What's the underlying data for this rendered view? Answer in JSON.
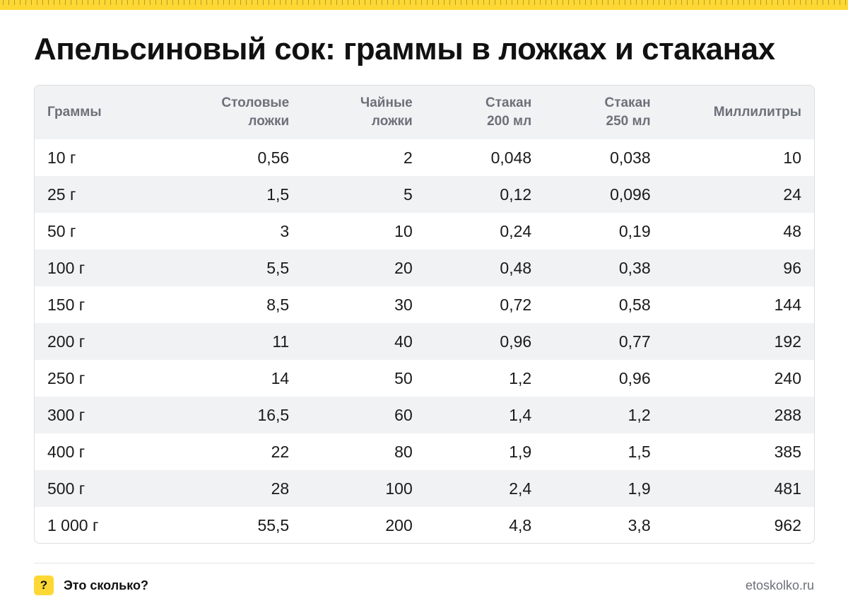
{
  "title": "Апельсиновый сок: граммы в ложках и стаканах",
  "table": {
    "headers": [
      [
        "Граммы",
        ""
      ],
      [
        "Столовые",
        "ложки"
      ],
      [
        "Чайные",
        "ложки"
      ],
      [
        "Стакан",
        "200 мл"
      ],
      [
        "Стакан",
        "250 мл"
      ],
      [
        "Миллилитры",
        ""
      ]
    ],
    "rows": [
      [
        "10 г",
        "0,56",
        "2",
        "0,048",
        "0,038",
        "10"
      ],
      [
        "25 г",
        "1,5",
        "5",
        "0,12",
        "0,096",
        "24"
      ],
      [
        "50 г",
        "3",
        "10",
        "0,24",
        "0,19",
        "48"
      ],
      [
        "100 г",
        "5,5",
        "20",
        "0,48",
        "0,38",
        "96"
      ],
      [
        "150 г",
        "8,5",
        "30",
        "0,72",
        "0,58",
        "144"
      ],
      [
        "200 г",
        "11",
        "40",
        "0,96",
        "0,77",
        "192"
      ],
      [
        "250 г",
        "14",
        "50",
        "1,2",
        "0,96",
        "240"
      ],
      [
        "300 г",
        "16,5",
        "60",
        "1,4",
        "1,2",
        "288"
      ],
      [
        "400 г",
        "22",
        "80",
        "1,9",
        "1,5",
        "385"
      ],
      [
        "500 г",
        "28",
        "100",
        "2,4",
        "1,9",
        "481"
      ],
      [
        "1 000 г",
        "55,5",
        "200",
        "4,8",
        "3,8",
        "962"
      ]
    ]
  },
  "footer": {
    "icon_glyph": "?",
    "icon_name": "question-mark-icon",
    "brand": "Это сколько?",
    "site": "etoskolko.ru"
  },
  "colors": {
    "accent": "#fdd835",
    "stripe": "#f1f2f4",
    "header_text": "#6c7079"
  }
}
